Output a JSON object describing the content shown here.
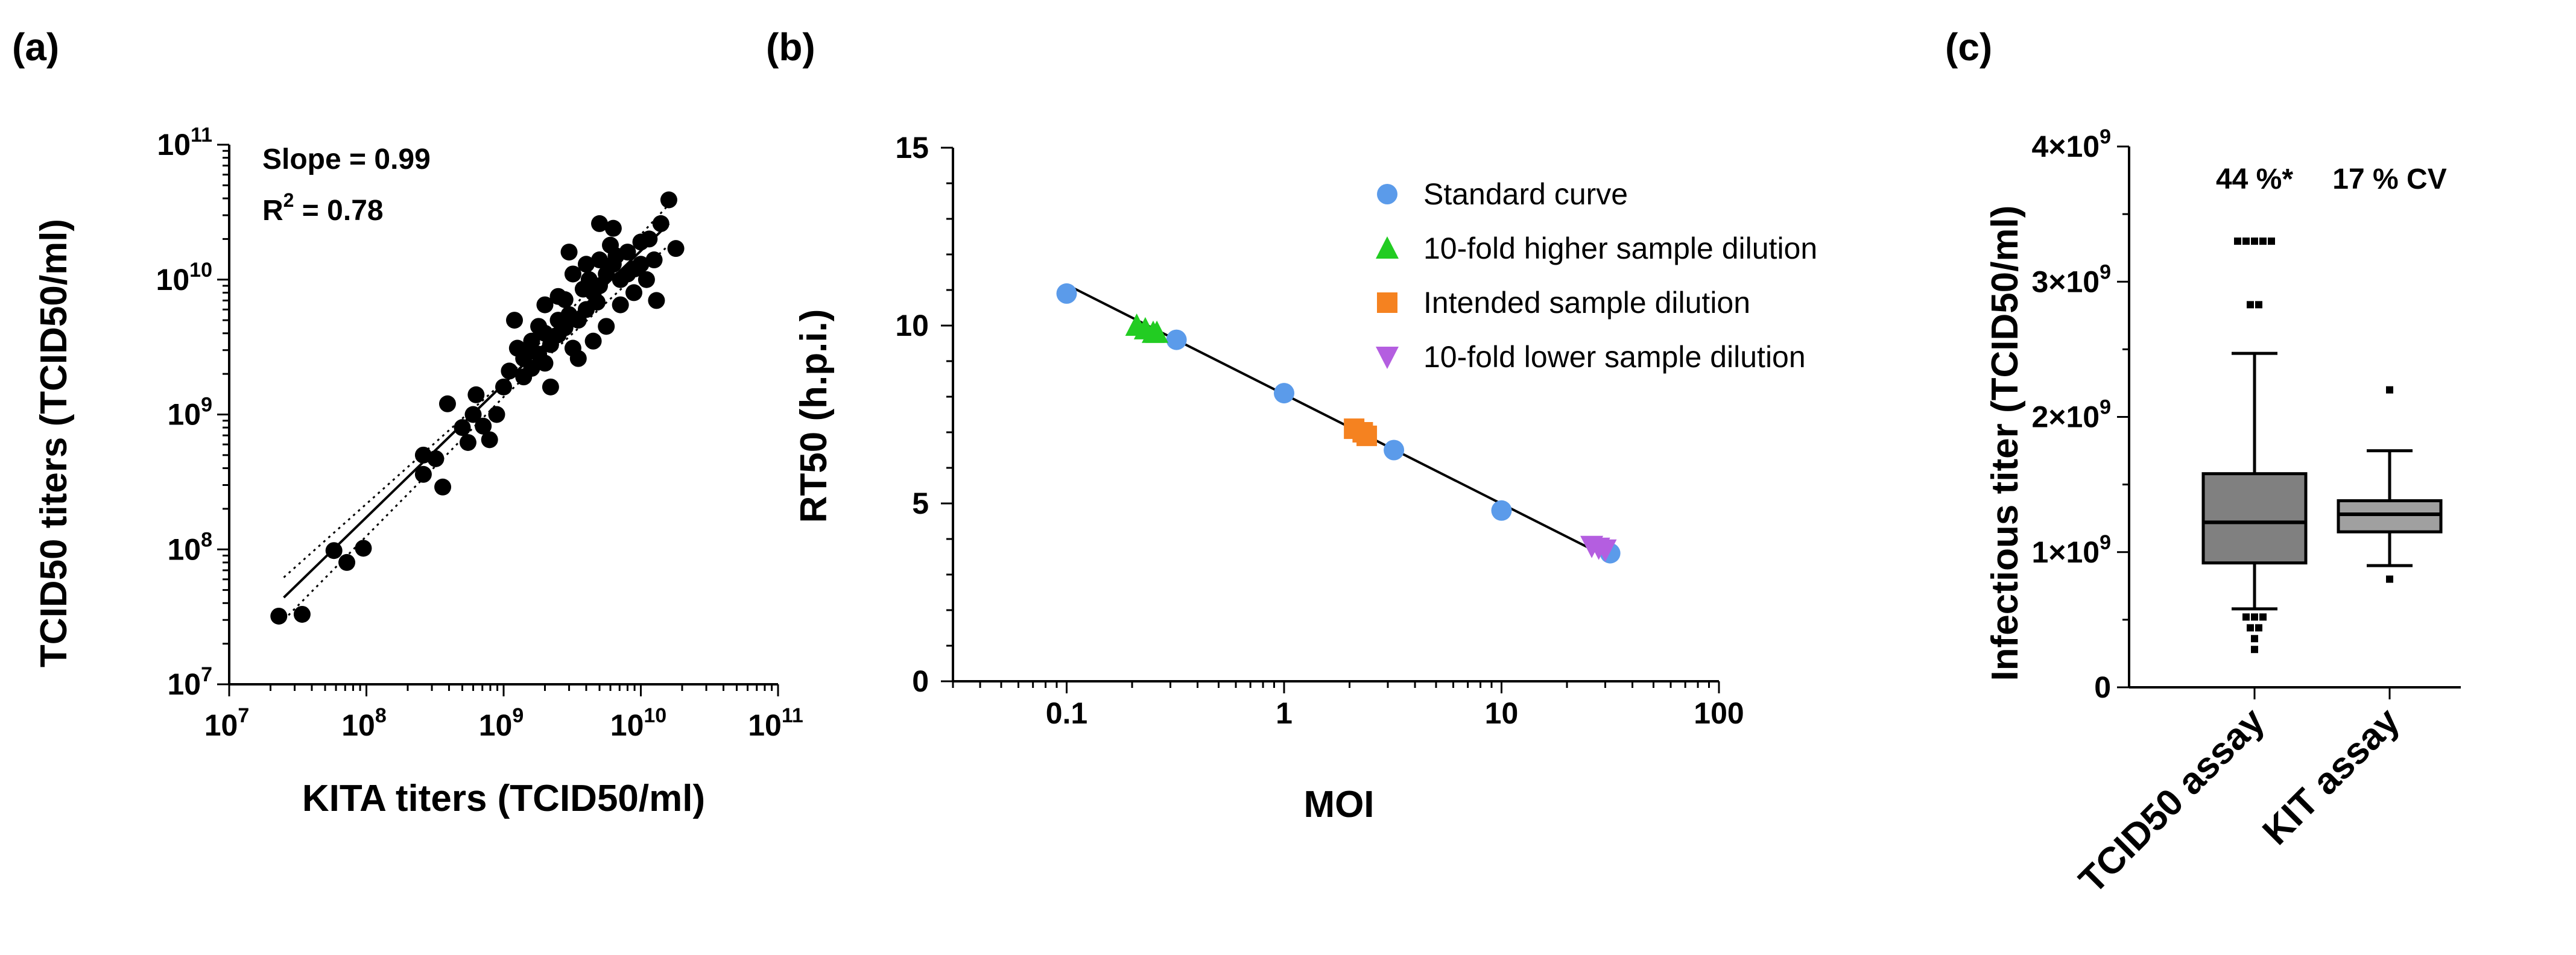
{
  "chart_data": [
    {
      "panel_label": "(a)",
      "type": "scatter",
      "xlabel": "KITA titers (TCID50/ml)",
      "ylabel": "TCID50 titers (TCID50/ml)",
      "x_scale": "log",
      "y_scale": "log",
      "xlim": [
        10000000.0,
        100000000000.0
      ],
      "ylim": [
        10000000.0,
        100000000000.0
      ],
      "x_tick_exponents": [
        7,
        8,
        9,
        10,
        11
      ],
      "y_tick_exponents": [
        7,
        8,
        9,
        10,
        11
      ],
      "tick_base": "10",
      "annotations": {
        "slope": "Slope = 0.99",
        "r2_prefix": "R",
        "r2_sup": "2",
        "r2_suffix": " = 0.78"
      },
      "fit_line": {
        "x": [
          25000000.0,
          16000000000.0
        ],
        "y": [
          44000000.0,
          26000000000.0
        ]
      },
      "ci_upper": {
        "x": [
          25000000.0,
          1000000000.0,
          16000000000.0
        ],
        "y": [
          62000000.0,
          1750000000.0,
          36000000000.0
        ]
      },
      "ci_lower": {
        "x": [
          25000000.0,
          1000000000.0,
          16000000000.0
        ],
        "y": [
          30000000.0,
          1350000000.0,
          18000000000.0
        ]
      },
      "marker_color": "#000000",
      "points": [
        [
          23000000.0,
          32000000.0
        ],
        [
          34000000.0,
          33000000.0
        ],
        [
          58000000.0,
          98000000.0
        ],
        [
          72000000.0,
          80000000.0
        ],
        [
          95000000.0,
          102000000.0
        ],
        [
          260000000.0,
          500000000.0
        ],
        [
          260000000.0,
          360000000.0
        ],
        [
          360000000.0,
          290000000.0
        ],
        [
          320000000.0,
          470000000.0
        ],
        [
          390000000.0,
          1200000000.0
        ],
        [
          500000000.0,
          800000000.0
        ],
        [
          550000000.0,
          620000000.0
        ],
        [
          630000000.0,
          1400000000.0
        ],
        [
          600000000.0,
          1000000000.0
        ],
        [
          710000000.0,
          820000000.0
        ],
        [
          790000000.0,
          650000000.0
        ],
        [
          890000000.0,
          1000000000.0
        ],
        [
          1000000000.0,
          1600000000.0
        ],
        [
          1100000000.0,
          2100000000.0
        ],
        [
          1200000000.0,
          5000000000.0
        ],
        [
          1260000000.0,
          3100000000.0
        ],
        [
          1400000000.0,
          1900000000.0
        ],
        [
          1400000000.0,
          2600000000.0
        ],
        [
          1600000000.0,
          2200000000.0
        ],
        [
          1600000000.0,
          3500000000.0
        ],
        [
          1800000000.0,
          4500000000.0
        ],
        [
          1800000000.0,
          2800000000.0
        ],
        [
          2000000000.0,
          2400000000.0
        ],
        [
          2000000000.0,
          6500000000.0
        ],
        [
          2200000000.0,
          3300000000.0
        ],
        [
          2200000000.0,
          1600000000.0
        ],
        [
          2500000000.0,
          5000000000.0
        ],
        [
          2500000000.0,
          3900000000.0
        ],
        [
          2800000000.0,
          4400000000.0
        ],
        [
          2800000000.0,
          7100000000.0
        ],
        [
          3200000000.0,
          3100000000.0
        ],
        [
          3200000000.0,
          11000000000.0
        ],
        [
          3500000000.0,
          5000000000.0
        ],
        [
          3500000000.0,
          2600000000.0
        ],
        [
          4000000000.0,
          6000000000.0
        ],
        [
          4000000000.0,
          13000000000.0
        ],
        [
          4500000000.0,
          3500000000.0
        ],
        [
          4500000000.0,
          8000000000.0
        ],
        [
          5000000000.0,
          9000000000.0
        ],
        [
          5000000000.0,
          26000000000.0
        ],
        [
          5600000000.0,
          11000000000.0
        ],
        [
          5600000000.0,
          4500000000.0
        ],
        [
          6300000000.0,
          13000000000.0
        ],
        [
          6300000000.0,
          24000000000.0
        ],
        [
          7100000000.0,
          10000000000.0
        ],
        [
          7100000000.0,
          6500000000.0
        ],
        [
          8000000000.0,
          16000000000.0
        ],
        [
          8000000000.0,
          11000000000.0
        ],
        [
          8900000000.0,
          8000000000.0
        ],
        [
          10000000000.0,
          13000000000.0
        ],
        [
          10000000000.0,
          19000000000.0
        ],
        [
          11000000000.0,
          10000000000.0
        ],
        [
          12500000000.0,
          14000000000.0
        ],
        [
          14000000000.0,
          26000000000.0
        ],
        [
          16000000000.0,
          39000000000.0
        ],
        [
          18000000000.0,
          17000000000.0
        ],
        [
          13000000000.0,
          7000000000.0
        ],
        [
          3000000000.0,
          16000000000.0
        ],
        [
          5000000000.0,
          14000000000.0
        ],
        [
          6000000000.0,
          18000000000.0
        ],
        [
          1500000000.0,
          3000000000.0
        ],
        [
          2000000000.0,
          4000000000.0
        ],
        [
          3000000000.0,
          5500000000.0
        ],
        [
          3800000000.0,
          8500000000.0
        ],
        [
          4200000000.0,
          10000000000.0
        ],
        [
          2500000000.0,
          7500000000.0
        ],
        [
          6600000000.0,
          15000000000.0
        ],
        [
          9000000000.0,
          12000000000.0
        ],
        [
          11500000000.0,
          20000000000.0
        ],
        [
          4800000000.0,
          6800000000.0
        ]
      ]
    },
    {
      "panel_label": "(b)",
      "type": "scatter",
      "xlabel": "MOI",
      "ylabel": "RT50 (h.p.i.)",
      "x_scale": "log",
      "xlim": [
        0.03,
        100
      ],
      "ylim": [
        0,
        15
      ],
      "x_ticks": [
        0.1,
        1,
        10,
        100
      ],
      "x_tick_labels": [
        "0.1",
        "1",
        "10",
        "100"
      ],
      "y_ticks": [
        0,
        5,
        10,
        15
      ],
      "y_tick_labels": [
        "0",
        "5",
        "10",
        "15"
      ],
      "fit_line": {
        "x": [
          0.1,
          31.6
        ],
        "y": [
          11.15,
          3.45
        ]
      },
      "legend_position": "top-right",
      "series": [
        {
          "name": "Standard curve",
          "marker": "circle",
          "color": "#5B9BEA",
          "points": [
            [
              0.1,
              10.9
            ],
            [
              0.32,
              9.6
            ],
            [
              1.0,
              8.1
            ],
            [
              3.2,
              6.5
            ],
            [
              10.0,
              4.8
            ],
            [
              31.6,
              3.6
            ]
          ]
        },
        {
          "name": "10-fold higher sample dilution",
          "marker": "triangle-up",
          "color": "#22CC22",
          "points": [
            [
              0.21,
              10.0
            ],
            [
              0.23,
              9.9
            ],
            [
              0.25,
              9.8
            ],
            [
              0.26,
              9.8
            ]
          ]
        },
        {
          "name": "Intended sample dilution",
          "marker": "square",
          "color": "#F58220",
          "points": [
            [
              2.1,
              7.1
            ],
            [
              2.3,
              7.0
            ],
            [
              2.4,
              6.9
            ]
          ]
        },
        {
          "name": "10-fold lower sample dilution",
          "marker": "triangle-down",
          "color": "#B45EE0",
          "points": [
            [
              26,
              3.8
            ],
            [
              28,
              3.75
            ],
            [
              30,
              3.7
            ]
          ]
        }
      ]
    },
    {
      "panel_label": "(c)",
      "type": "box",
      "ylabel": "Infectious titer (TCID50/ml)",
      "ylim": [
        0,
        4000000000.0
      ],
      "y_ticks": [
        0,
        1000000000.0,
        2000000000.0,
        3000000000.0,
        4000000000.0
      ],
      "y_tick_labels": [
        {
          "mant": "0",
          "exp": ""
        },
        {
          "mant": "1×10",
          "exp": "9"
        },
        {
          "mant": "2×10",
          "exp": "9"
        },
        {
          "mant": "3×10",
          "exp": "9"
        },
        {
          "mant": "4×10",
          "exp": "9"
        }
      ],
      "categories": [
        "TCID50 assay",
        "KIT assay"
      ],
      "box_colors": [
        "#808080",
        "#A0A0A0"
      ],
      "annotations": [
        "44 %*",
        "17 % CV"
      ],
      "boxes": [
        {
          "whisker_low": 580000000.0,
          "q1": 920000000.0,
          "median": 1220000000.0,
          "q3": 1580000000.0,
          "whisker_high": 2470000000.0,
          "outliers": [
            3300000000.0,
            3300000000.0,
            3300000000.0,
            3300000000.0,
            3300000000.0,
            2830000000.0,
            2830000000.0,
            520000000.0,
            520000000.0,
            520000000.0,
            440000000.0,
            440000000.0,
            360000000.0,
            280000000.0
          ]
        },
        {
          "whisker_low": 900000000.0,
          "q1": 1150000000.0,
          "median": 1280000000.0,
          "q3": 1380000000.0,
          "whisker_high": 1750000000.0,
          "outliers": [
            2200000000.0,
            800000000.0
          ]
        }
      ]
    }
  ]
}
